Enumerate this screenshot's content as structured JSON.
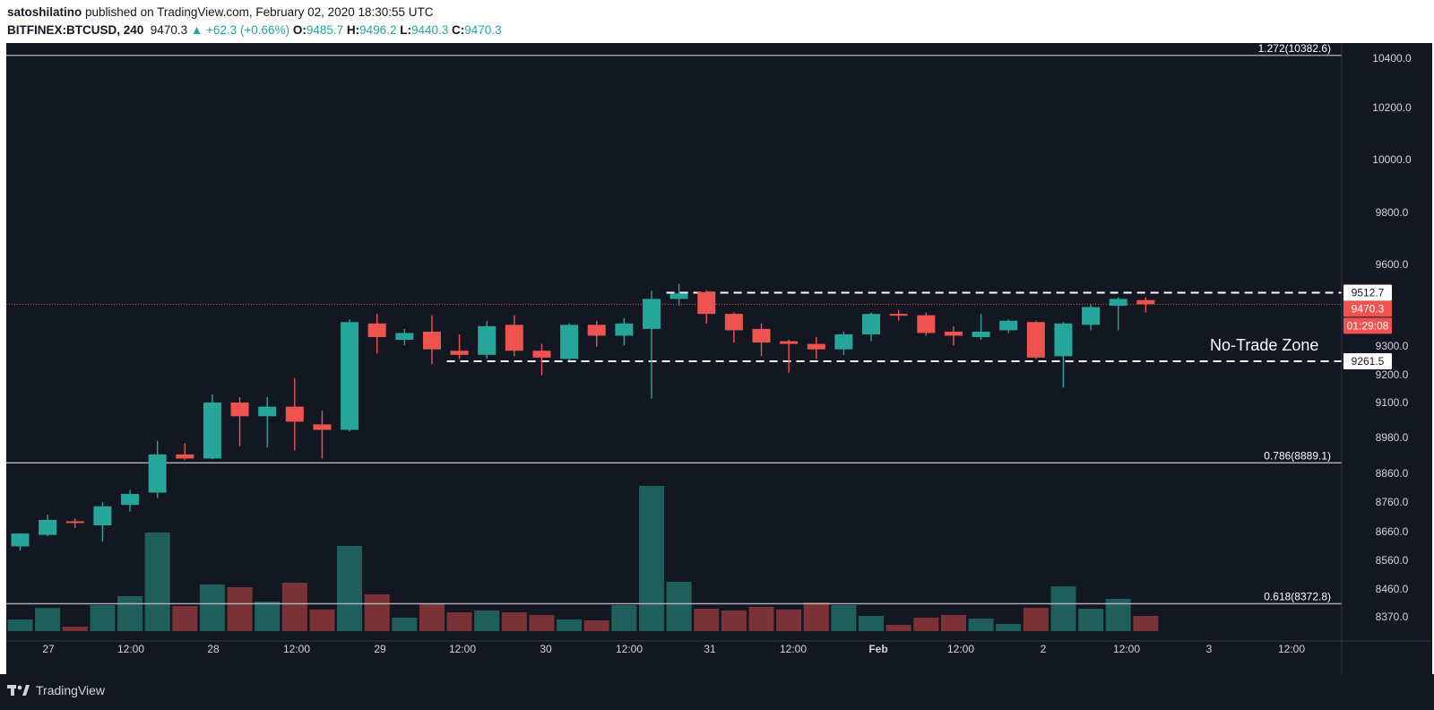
{
  "header": {
    "author": "satoshilatino",
    "published_text": " published on TradingView.com, February 02, 2020 18:30:55 UTC",
    "symbol": "BITFINEX:BTCUSD, 240",
    "last": "9470.3",
    "change": "+62.3 (+0.66%)",
    "o_label": "O:",
    "o_value": "9485.7",
    "h_label": "H:",
    "h_value": "9496.2",
    "l_label": "L:",
    "l_value": "9440.3",
    "c_label": "C:",
    "c_value": "9470.3",
    "up_arrow": "▲"
  },
  "footer": {
    "brand": "TradingView"
  },
  "colors": {
    "background": "#131722",
    "up": "#26a69a",
    "down": "#ef5350",
    "up_volume": "#1f5f5b",
    "down_volume": "#7b3236",
    "axis_text": "#d1d4dc",
    "fib_line": "#b2b5be",
    "dashed_line": "#ffffff"
  },
  "chart_data": {
    "type": "candlestick",
    "symbol": "BITFINEX:BTCUSD",
    "interval": "240",
    "x_tick_labels": [
      "27",
      "12:00",
      "28",
      "12:00",
      "29",
      "12:00",
      "30",
      "12:00",
      "31",
      "12:00",
      "Feb",
      "12:00",
      "2",
      "12:00",
      "3",
      "12:00"
    ],
    "y_tick_labels": [
      "10400.0",
      "10200.0",
      "10000.0",
      "9800.0",
      "9600.0",
      "9300.0",
      "9200.0",
      "9100.0",
      "8980.0",
      "8860.0",
      "8760.0",
      "8660.0",
      "8560.0",
      "8460.0",
      "8370.0"
    ],
    "candles": [
      {
        "o": 8583,
        "h": 8631,
        "l": 8568,
        "c": 8630
      },
      {
        "o": 8625,
        "h": 8700,
        "l": 8620,
        "c": 8680
      },
      {
        "o": 8675,
        "h": 8685,
        "l": 8650,
        "c": 8670
      },
      {
        "o": 8660,
        "h": 8745,
        "l": 8600,
        "c": 8730
      },
      {
        "o": 8735,
        "h": 8790,
        "l": 8710,
        "c": 8775
      },
      {
        "o": 8780,
        "h": 8970,
        "l": 8760,
        "c": 8920
      },
      {
        "o": 8920,
        "h": 8960,
        "l": 8900,
        "c": 8905
      },
      {
        "o": 8905,
        "h": 9140,
        "l": 8903,
        "c": 9110
      },
      {
        "o": 9110,
        "h": 9130,
        "l": 8950,
        "c": 9060
      },
      {
        "o": 9060,
        "h": 9130,
        "l": 8945,
        "c": 9095
      },
      {
        "o": 9095,
        "h": 9200,
        "l": 8935,
        "c": 9040
      },
      {
        "o": 9030,
        "h": 9080,
        "l": 8905,
        "c": 9010
      },
      {
        "o": 9010,
        "h": 9415,
        "l": 9005,
        "c": 9405
      },
      {
        "o": 9400,
        "h": 9435,
        "l": 9290,
        "c": 9350
      },
      {
        "o": 9340,
        "h": 9380,
        "l": 9320,
        "c": 9365
      },
      {
        "o": 9370,
        "h": 9430,
        "l": 9250,
        "c": 9305
      },
      {
        "o": 9300,
        "h": 9360,
        "l": 9270,
        "c": 9285
      },
      {
        "o": 9285,
        "h": 9410,
        "l": 9270,
        "c": 9390
      },
      {
        "o": 9395,
        "h": 9430,
        "l": 9280,
        "c": 9300
      },
      {
        "o": 9300,
        "h": 9325,
        "l": 9210,
        "c": 9275
      },
      {
        "o": 9270,
        "h": 9400,
        "l": 9265,
        "c": 9395
      },
      {
        "o": 9395,
        "h": 9410,
        "l": 9315,
        "c": 9355
      },
      {
        "o": 9355,
        "h": 9420,
        "l": 9320,
        "c": 9400
      },
      {
        "o": 9380,
        "h": 9520,
        "l": 9125,
        "c": 9490
      },
      {
        "o": 9490,
        "h": 9545,
        "l": 9465,
        "c": 9510
      },
      {
        "o": 9515,
        "h": 9520,
        "l": 9400,
        "c": 9435
      },
      {
        "o": 9435,
        "h": 9440,
        "l": 9330,
        "c": 9375
      },
      {
        "o": 9380,
        "h": 9400,
        "l": 9280,
        "c": 9330
      },
      {
        "o": 9335,
        "h": 9340,
        "l": 9220,
        "c": 9325
      },
      {
        "o": 9325,
        "h": 9350,
        "l": 9270,
        "c": 9305
      },
      {
        "o": 9305,
        "h": 9370,
        "l": 9285,
        "c": 9360
      },
      {
        "o": 9360,
        "h": 9440,
        "l": 9335,
        "c": 9435
      },
      {
        "o": 9435,
        "h": 9450,
        "l": 9410,
        "c": 9430
      },
      {
        "o": 9430,
        "h": 9440,
        "l": 9355,
        "c": 9365
      },
      {
        "o": 9370,
        "h": 9390,
        "l": 9320,
        "c": 9355
      },
      {
        "o": 9350,
        "h": 9435,
        "l": 9340,
        "c": 9370
      },
      {
        "o": 9375,
        "h": 9415,
        "l": 9365,
        "c": 9410
      },
      {
        "o": 9405,
        "h": 9410,
        "l": 9270,
        "c": 9275
      },
      {
        "o": 9280,
        "h": 9405,
        "l": 9165,
        "c": 9400
      },
      {
        "o": 9395,
        "h": 9470,
        "l": 9375,
        "c": 9460
      },
      {
        "o": 9465,
        "h": 9495,
        "l": 9375,
        "c": 9490
      },
      {
        "o": 9485.7,
        "h": 9496.2,
        "l": 9440.3,
        "c": 9470.3
      }
    ],
    "volumes": [
      13,
      26,
      5,
      29,
      39,
      110,
      28,
      52,
      49,
      33,
      54,
      24,
      95,
      41,
      15,
      30,
      21,
      23,
      21,
      18,
      13,
      12,
      29,
      162,
      55,
      25,
      23,
      27,
      24,
      32,
      29,
      17,
      7,
      15,
      18,
      14,
      8,
      26,
      50,
      25,
      36,
      17
    ],
    "fib_levels": [
      {
        "label": "1.272(10382.6)",
        "value": 10382.6
      },
      {
        "label": "0.786(8889.1)",
        "value": 8889.1
      },
      {
        "label": "0.618(8372.8)",
        "value": 8372.8
      }
    ],
    "range_lines": [
      {
        "label": "9512.7",
        "value": 9512.7
      },
      {
        "label": "9261.5",
        "value": 9261.5
      }
    ],
    "annotation": "No-Trade Zone",
    "last_price": {
      "label": "9470.3",
      "value": 9470.3
    },
    "countdown": "01:29:08"
  }
}
